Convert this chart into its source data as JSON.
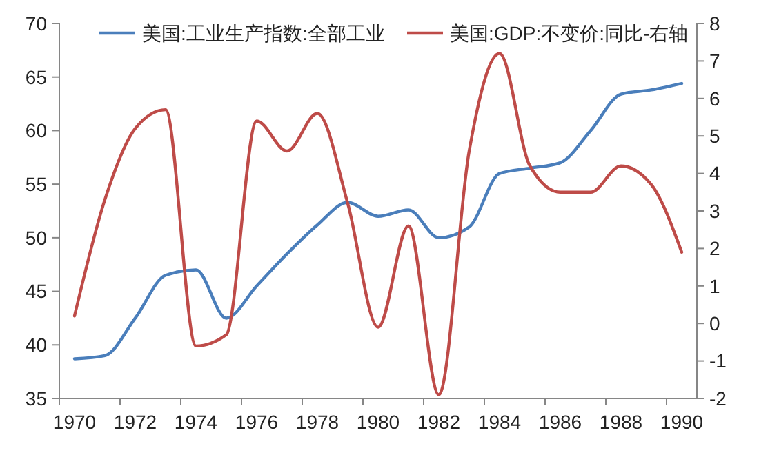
{
  "chart_data": {
    "type": "line",
    "categories": [
      "1970",
      null,
      "1972",
      null,
      "1974",
      null,
      "1976",
      null,
      "1978",
      null,
      "1980",
      null,
      "1982",
      null,
      "1984",
      null,
      "1986",
      null,
      "1988",
      null,
      "1990"
    ],
    "series": [
      {
        "name": "美国:工业生产指数:全部工业",
        "color": "#4a7ebb",
        "values": [
          38.7,
          39,
          42.5,
          46.5,
          47,
          42.5,
          45.5,
          48.5,
          51.2,
          53.3,
          52,
          52.6,
          50,
          51,
          56,
          56.5,
          57,
          60,
          63.4,
          63.8,
          64.4
        ]
      },
      {
        "name": "美国:GDP:不变价:同比-右轴",
        "color": "#be4b48",
        "axis": "y2",
        "values": [
          0.2,
          3.3,
          5.2,
          5.7,
          -0.6,
          -0.3,
          5.4,
          4.6,
          5.6,
          3.2,
          -0.1,
          2.6,
          -1.9,
          4.6,
          7.2,
          4.2,
          3.5,
          3.5,
          4.2,
          3.7,
          1.9
        ]
      }
    ],
    "ylim": [
      35,
      70
    ],
    "yticks": [
      35,
      40,
      45,
      50,
      55,
      60,
      65,
      70
    ],
    "y2lim": [
      -2,
      8
    ],
    "y2ticks": [
      -2,
      -1,
      0,
      1,
      2,
      3,
      4,
      5,
      6,
      7,
      8
    ],
    "legend": "top",
    "grid": false,
    "marker": "none",
    "line_style": "solid"
  }
}
